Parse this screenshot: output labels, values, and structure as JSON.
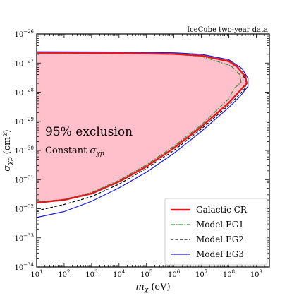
{
  "chart_data": {
    "type": "area",
    "title": "",
    "note": "IceCube two-year data",
    "xlabel": "m_χ (eV)",
    "ylabel": "σ_χp (cm²)",
    "x_scale": "log",
    "y_scale": "log",
    "xlim": [
      10,
      3000000000.0
    ],
    "ylim": [
      1e-34,
      1e-26
    ],
    "x_ticks": [
      10.0,
      100.0,
      1000.0,
      10000.0,
      100000.0,
      1000000.0,
      10000000.0,
      100000000.0,
      1000000000.0
    ],
    "y_ticks": [
      1e-34,
      1e-33,
      1e-32,
      1e-31,
      1e-30,
      1e-29,
      1e-28,
      1e-27,
      1e-26
    ],
    "annotation_main": "95% exclusion",
    "annotation_sub": "Constant σ_χp",
    "shaded_region": {
      "series": "Galactic CR",
      "color": "#ffc0cb"
    },
    "legend": {
      "location": "lower-right"
    },
    "series": [
      {
        "name": "Galactic CR",
        "color": "#e0191e",
        "style": "solid",
        "points": [
          [
            10,
            1.6e-32
          ],
          [
            100.0,
            2e-32
          ],
          [
            1000.0,
            3.3e-32
          ],
          [
            10000.0,
            8.5e-32
          ],
          [
            100000.0,
            2.8e-31
          ],
          [
            1000000.0,
            1.2e-30
          ],
          [
            10000000.0,
            6.5e-30
          ],
          [
            100000000.0,
            4.3e-29
          ],
          [
            250000000.0,
            1.1e-28
          ],
          [
            450000000.0,
            2e-28
          ],
          [
            400000000.0,
            3.5e-28
          ],
          [
            200000000.0,
            7.5e-28
          ],
          [
            100000000.0,
            1.15e-27
          ],
          [
            10000000.0,
            1.8e-27
          ],
          [
            1000000.0,
            2.05e-27
          ],
          [
            10000.0,
            2.2e-27
          ],
          [
            100.0,
            2.25e-27
          ],
          [
            10,
            2.25e-27
          ]
        ]
      },
      {
        "name": "Model EG1",
        "color": "#2e8b2e",
        "style": "dashdot",
        "points": [
          [
            10,
            1.7e-32
          ],
          [
            100.0,
            2.1e-32
          ],
          [
            1000.0,
            3.6e-32
          ],
          [
            10000.0,
            9.5e-32
          ],
          [
            100000.0,
            3.2e-31
          ],
          [
            1000000.0,
            1.4e-30
          ],
          [
            10000000.0,
            7.5e-30
          ],
          [
            100000000.0,
            6e-29
          ],
          [
            150000000.0,
            1.3e-28
          ],
          [
            280000000.0,
            2.2e-28
          ],
          [
            250000000.0,
            4e-28
          ],
          [
            120000000.0,
            8e-28
          ],
          [
            10000000.0,
            1.7e-27
          ],
          [
            1000000.0,
            2e-27
          ],
          [
            10000.0,
            2.15e-27
          ],
          [
            10,
            2.2e-27
          ]
        ]
      },
      {
        "name": "Model EG2",
        "color": "#000000",
        "style": "dashed",
        "points": [
          [
            10,
            8.5e-33
          ],
          [
            100.0,
            1.4e-32
          ],
          [
            1000.0,
            2.6e-32
          ],
          [
            10000.0,
            7e-32
          ],
          [
            100000.0,
            2.4e-31
          ],
          [
            1000000.0,
            1e-30
          ],
          [
            10000000.0,
            5.5e-30
          ],
          [
            100000000.0,
            3.6e-29
          ],
          [
            250000000.0,
            8.5e-29
          ],
          [
            400000000.0,
            1.4e-28
          ],
          [
            420000000.0,
            2.5e-28
          ],
          [
            250000000.0,
            6e-28
          ],
          [
            100000000.0,
            1.2e-27
          ],
          [
            10000000.0,
            1.85e-27
          ],
          [
            1000000.0,
            2.1e-27
          ],
          [
            10000.0,
            2.25e-27
          ],
          [
            10,
            2.3e-27
          ]
        ]
      },
      {
        "name": "Model EG3",
        "color": "#1a1adf",
        "style": "solid",
        "points": [
          [
            10,
            5e-33
          ],
          [
            100.0,
            8e-33
          ],
          [
            1000.0,
            1.8e-32
          ],
          [
            10000.0,
            5.2e-32
          ],
          [
            100000.0,
            1.8e-31
          ],
          [
            1000000.0,
            8e-31
          ],
          [
            10000000.0,
            4.5e-30
          ],
          [
            100000000.0,
            3e-29
          ],
          [
            250000000.0,
            7e-29
          ],
          [
            500000000.0,
            1.6e-28
          ],
          [
            500000000.0,
            3e-28
          ],
          [
            300000000.0,
            6.5e-28
          ],
          [
            100000000.0,
            1.3e-27
          ],
          [
            10000000.0,
            2e-27
          ],
          [
            1000000.0,
            2.25e-27
          ],
          [
            10000.0,
            2.4e-27
          ],
          [
            10,
            2.45e-27
          ]
        ]
      }
    ]
  }
}
